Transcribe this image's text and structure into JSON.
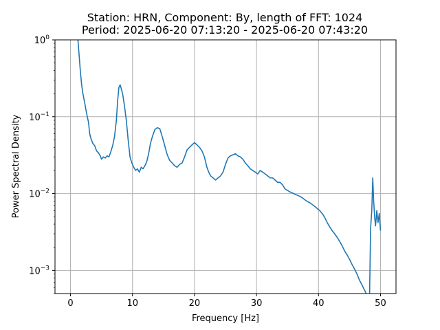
{
  "chart_data": {
    "type": "line",
    "title_line1": "Station: HRN, Component: By, length of FFT: 1024",
    "title_line2": "Period: 2025-06-20 07:13:20 - 2025-06-20 07:43:20",
    "xlabel": "Frequency [Hz]",
    "ylabel": "Power Spectral Density",
    "xlim": [
      -2.5,
      52.5
    ],
    "ylim": [
      0.0005,
      1
    ],
    "yscale": "log",
    "grid": true,
    "x_ticks": [
      {
        "value": 0,
        "label": "0"
      },
      {
        "value": 10,
        "label": "10"
      },
      {
        "value": 20,
        "label": "20"
      },
      {
        "value": 30,
        "label": "30"
      },
      {
        "value": 40,
        "label": "40"
      },
      {
        "value": 50,
        "label": "50"
      }
    ],
    "y_ticks": [
      {
        "value": 0.001,
        "base": "10",
        "exp": "−3"
      },
      {
        "value": 0.01,
        "base": "10",
        "exp": "−2"
      },
      {
        "value": 0.1,
        "base": "10",
        "exp": "−1"
      },
      {
        "value": 1,
        "base": "10",
        "exp": "0"
      }
    ],
    "series": [
      {
        "color": "#1f77b4",
        "points": [
          [
            1.2,
            1.0
          ],
          [
            1.4,
            0.62
          ],
          [
            1.6,
            0.38
          ],
          [
            1.8,
            0.26
          ],
          [
            2.0,
            0.2
          ],
          [
            2.3,
            0.15
          ],
          [
            2.6,
            0.11
          ],
          [
            2.9,
            0.085
          ],
          [
            3.1,
            0.06
          ],
          [
            3.3,
            0.052
          ],
          [
            3.6,
            0.045
          ],
          [
            3.9,
            0.042
          ],
          [
            4.2,
            0.036
          ],
          [
            4.5,
            0.034
          ],
          [
            4.8,
            0.031
          ],
          [
            5.0,
            0.028
          ],
          [
            5.3,
            0.03
          ],
          [
            5.6,
            0.029
          ],
          [
            5.9,
            0.031
          ],
          [
            6.2,
            0.03
          ],
          [
            6.5,
            0.035
          ],
          [
            6.8,
            0.042
          ],
          [
            7.1,
            0.055
          ],
          [
            7.4,
            0.09
          ],
          [
            7.6,
            0.16
          ],
          [
            7.8,
            0.24
          ],
          [
            8.0,
            0.26
          ],
          [
            8.2,
            0.23
          ],
          [
            8.4,
            0.2
          ],
          [
            8.7,
            0.14
          ],
          [
            9.0,
            0.09
          ],
          [
            9.3,
            0.05
          ],
          [
            9.6,
            0.03
          ],
          [
            9.9,
            0.025
          ],
          [
            10.2,
            0.022
          ],
          [
            10.5,
            0.02
          ],
          [
            10.8,
            0.021
          ],
          [
            11.1,
            0.019
          ],
          [
            11.4,
            0.022
          ],
          [
            11.7,
            0.021
          ],
          [
            12.0,
            0.023
          ],
          [
            12.3,
            0.026
          ],
          [
            12.6,
            0.033
          ],
          [
            12.9,
            0.045
          ],
          [
            13.2,
            0.055
          ],
          [
            13.6,
            0.068
          ],
          [
            14.0,
            0.072
          ],
          [
            14.4,
            0.07
          ],
          [
            14.8,
            0.055
          ],
          [
            15.2,
            0.042
          ],
          [
            15.6,
            0.032
          ],
          [
            16.0,
            0.027
          ],
          [
            16.4,
            0.025
          ],
          [
            16.8,
            0.023
          ],
          [
            17.2,
            0.022
          ],
          [
            17.6,
            0.024
          ],
          [
            18.0,
            0.025
          ],
          [
            18.4,
            0.03
          ],
          [
            18.8,
            0.037
          ],
          [
            19.2,
            0.04
          ],
          [
            19.6,
            0.043
          ],
          [
            20.0,
            0.046
          ],
          [
            20.4,
            0.043
          ],
          [
            20.8,
            0.04
          ],
          [
            21.2,
            0.036
          ],
          [
            21.6,
            0.03
          ],
          [
            22.0,
            0.022
          ],
          [
            22.3,
            0.019
          ],
          [
            22.6,
            0.017
          ],
          [
            23.0,
            0.016
          ],
          [
            23.4,
            0.015
          ],
          [
            23.8,
            0.016
          ],
          [
            24.2,
            0.017
          ],
          [
            24.6,
            0.019
          ],
          [
            25.0,
            0.024
          ],
          [
            25.4,
            0.029
          ],
          [
            25.8,
            0.031
          ],
          [
            26.2,
            0.032
          ],
          [
            26.6,
            0.033
          ],
          [
            27.0,
            0.031
          ],
          [
            27.4,
            0.03
          ],
          [
            27.8,
            0.028
          ],
          [
            28.2,
            0.025
          ],
          [
            28.6,
            0.023
          ],
          [
            29.0,
            0.021
          ],
          [
            29.4,
            0.02
          ],
          [
            29.8,
            0.019
          ],
          [
            30.2,
            0.018
          ],
          [
            30.6,
            0.02
          ],
          [
            31.0,
            0.019
          ],
          [
            31.4,
            0.018
          ],
          [
            31.8,
            0.017
          ],
          [
            32.2,
            0.016
          ],
          [
            32.6,
            0.016
          ],
          [
            33.0,
            0.015
          ],
          [
            33.4,
            0.014
          ],
          [
            33.8,
            0.014
          ],
          [
            34.2,
            0.013
          ],
          [
            34.6,
            0.0115
          ],
          [
            35.0,
            0.011
          ],
          [
            35.4,
            0.0105
          ],
          [
            35.8,
            0.0102
          ],
          [
            36.2,
            0.0098
          ],
          [
            36.6,
            0.0095
          ],
          [
            37.0,
            0.0092
          ],
          [
            37.4,
            0.0088
          ],
          [
            37.8,
            0.0083
          ],
          [
            38.2,
            0.0079
          ],
          [
            38.6,
            0.0076
          ],
          [
            39.0,
            0.0072
          ],
          [
            39.4,
            0.0068
          ],
          [
            39.8,
            0.0064
          ],
          [
            40.2,
            0.006
          ],
          [
            40.6,
            0.0055
          ],
          [
            41.0,
            0.0049
          ],
          [
            41.4,
            0.0042
          ],
          [
            41.8,
            0.0037
          ],
          [
            42.2,
            0.0033
          ],
          [
            42.6,
            0.003
          ],
          [
            43.0,
            0.0027
          ],
          [
            43.4,
            0.0024
          ],
          [
            43.8,
            0.0021
          ],
          [
            44.2,
            0.0018
          ],
          [
            44.6,
            0.0016
          ],
          [
            45.0,
            0.0014
          ],
          [
            45.4,
            0.0012
          ],
          [
            45.8,
            0.00105
          ],
          [
            46.2,
            0.0009
          ],
          [
            46.6,
            0.00075
          ],
          [
            47.0,
            0.00065
          ],
          [
            47.3,
            0.00058
          ],
          [
            47.6,
            0.00052
          ],
          [
            47.9,
            0.00045
          ],
          [
            48.1,
            0.00035
          ],
          [
            48.2,
            0.0003
          ],
          [
            48.4,
            0.0035
          ],
          [
            48.6,
            0.0062
          ],
          [
            48.75,
            0.016
          ],
          [
            48.9,
            0.008
          ],
          [
            49.05,
            0.005
          ],
          [
            49.2,
            0.0038
          ],
          [
            49.4,
            0.006
          ],
          [
            49.6,
            0.0042
          ],
          [
            49.8,
            0.0055
          ],
          [
            50.0,
            0.0033
          ]
        ]
      }
    ]
  }
}
